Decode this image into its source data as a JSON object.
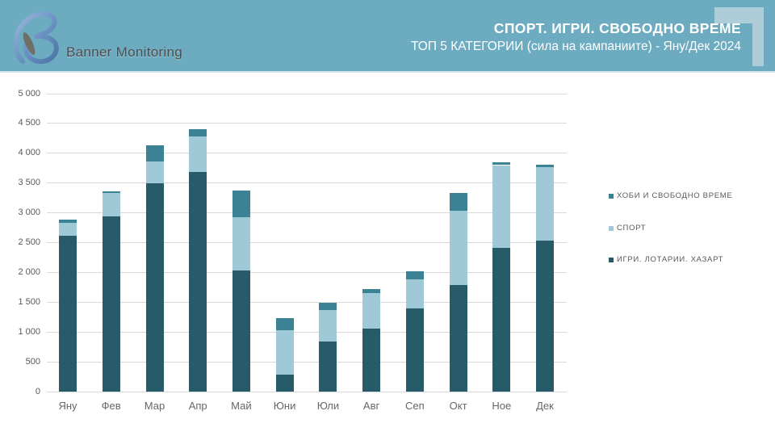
{
  "header": {
    "logo_text": "Banner Monitoring",
    "title": "СПОРТ. ИГРИ. СВОБОДНО ВРЕМЕ",
    "subtitle": "ТОП 5 КАТЕГОРИИ (сила на кампаниите) - Яну/Дек 2024",
    "bg_color": "#6cabc0",
    "corner_color": "#aecdd9"
  },
  "chart_data": {
    "type": "bar",
    "stacked": true,
    "grid": true,
    "legend_position": "right",
    "categories": [
      "Яну",
      "Фев",
      "Мар",
      "Апр",
      "Май",
      "Юни",
      "Юли",
      "Авг",
      "Сеп",
      "Окт",
      "Ное",
      "Дек"
    ],
    "series": [
      {
        "name": "ИГРИ. ЛОТАРИИ. ХАЗАРТ",
        "color": "#275b69",
        "values": [
          2620,
          2940,
          3500,
          3680,
          2030,
          290,
          845,
          1060,
          1390,
          1790,
          2410,
          2530
        ]
      },
      {
        "name": "СПОРТ",
        "color": "#a0c9d8",
        "values": [
          215,
          390,
          360,
          600,
          900,
          745,
          530,
          595,
          490,
          1240,
          1390,
          1240
        ]
      },
      {
        "name": "ХОБИ И СВОБОДНО ВРЕМЕ",
        "color": "#3a8294",
        "values": [
          55,
          35,
          270,
          120,
          450,
          200,
          120,
          60,
          145,
          305,
          45,
          35
        ]
      }
    ],
    "totals": [
      2890,
      3365,
      4130,
      4400,
      3380,
      1235,
      1495,
      1715,
      2025,
      3335,
      3845,
      3805
    ],
    "legend": [
      {
        "label": "ХОБИ И СВОБОДНО ВРЕМЕ",
        "color": "#3a8294"
      },
      {
        "label": "СПОРТ",
        "color": "#a0c9d8"
      },
      {
        "label": "ИГРИ. ЛОТАРИИ. ХАЗАРТ",
        "color": "#275b69"
      }
    ],
    "ylim": [
      0,
      5000
    ],
    "ytick_step": 500,
    "ytick_labels": [
      "0",
      "500",
      "1 000",
      "1 500",
      "2 000",
      "2 500",
      "3 000",
      "3 500",
      "4 000",
      "4 500",
      "5 000"
    ],
    "xlabel": "",
    "ylabel": ""
  }
}
